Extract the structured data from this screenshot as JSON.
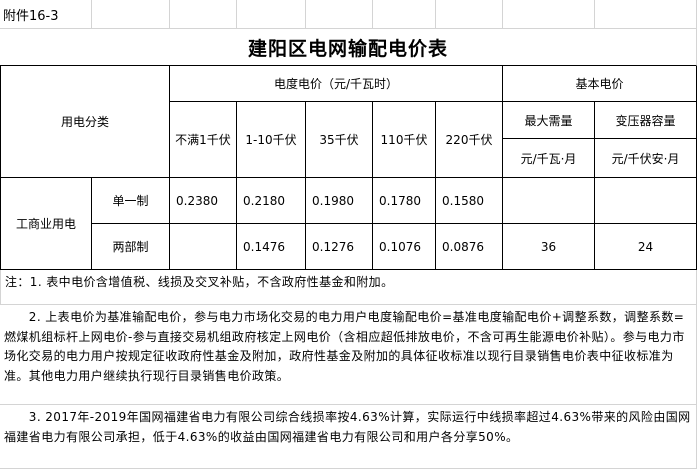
{
  "attachment_label": "附件16-3",
  "title": "建阳区电网输配电价表",
  "header": {
    "category": "用电分类",
    "energy_price": "电度电价（元/千瓦时）",
    "basic_price": "基本电价",
    "voltages": [
      "不满1千伏",
      "1-10千伏",
      "35千伏",
      "110千伏",
      "220千伏"
    ],
    "max_demand": "最大需量",
    "transformer_capacity": "变压器容量",
    "max_demand_unit": "元/千瓦·月",
    "transformer_unit": "元/千伏安·月"
  },
  "rows": {
    "group": "工商业用电",
    "single": {
      "label": "单一制",
      "values": [
        "0.2380",
        "0.2180",
        "0.1980",
        "0.1780",
        "0.1580",
        "",
        ""
      ]
    },
    "two_part": {
      "label": "两部制",
      "values": [
        "",
        "0.1476",
        "0.1276",
        "0.1076",
        "0.0876",
        "36",
        "24"
      ]
    }
  },
  "notes": [
    "注：1. 表中电价含增值税、线损及交叉补贴，不含政府性基金和附加。",
    "　　2. 上表电价为基准输配电价，参与电力市场化交易的电力用户电度输配电价=基准电度输配电价+调整系数，调整系数=燃煤机组标杆上网电价-参与直接交易机组政府核定上网电价（含相应超低排放电价，不含可再生能源电价补贴）。参与电力市场化交易的电力用户按规定征收政府性基金及附加，政府性基金及附加的具体征收标准以现行目录销售电价表中征收标准为准。其他电力用户继续执行现行目录销售电价政策。",
    "　　3. 2017年-2019年国网福建省电力有限公司综合线损率按4.63%计算，实际运行中线损率超过4.63%带来的风险由国网福建省电力有限公司承担，低于4.63%的收益由国网福建省电力有限公司和用户各分享50%。"
  ]
}
